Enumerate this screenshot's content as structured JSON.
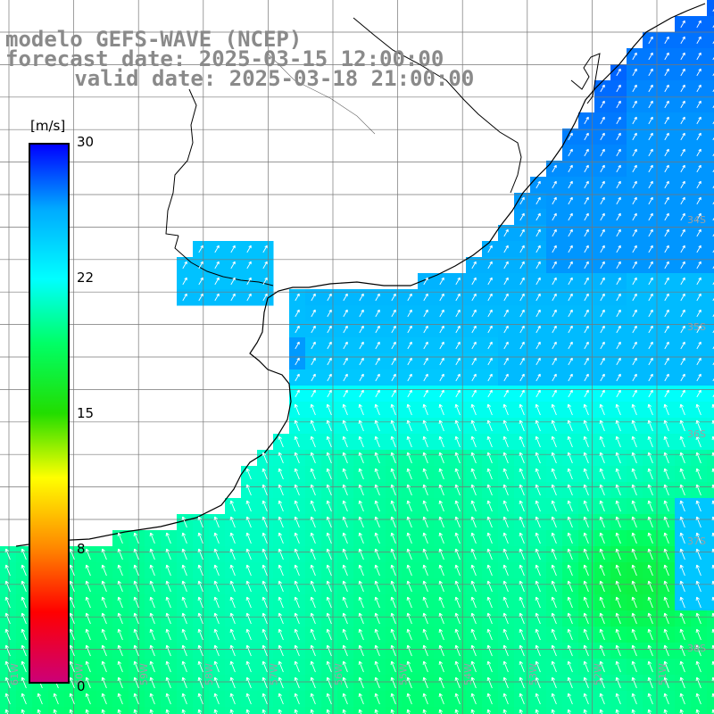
{
  "header": {
    "model_line": "modelo GEFS-WAVE (NCEP)",
    "forecast_line": "forecast date: 2025-03-15 12:00:00",
    "valid_line": "   valid date: 2025-03-18 21:00:00"
  },
  "colorbar": {
    "unit": "[m/s]",
    "ticks": {
      "t30": "30",
      "t22": "22",
      "t15": "15",
      "t8": "8",
      "t0": "0"
    },
    "stops": [
      "#0000ff",
      "#00aaff",
      "#00ffff",
      "#00ff66",
      "#22dd00",
      "#ffff00",
      "#ff8800",
      "#ff0000",
      "#cc0077"
    ]
  },
  "map": {
    "lon_labels": [
      "61W",
      "60W",
      "59W",
      "58W",
      "57W",
      "56W",
      "55W",
      "54W",
      "53W",
      "52W",
      "51W"
    ],
    "lat_labels": [
      "34S",
      "35S",
      "36S",
      "37S",
      "38S"
    ],
    "colors": {
      "land": "#ffffff",
      "grid": "#777777",
      "coast": "#000000",
      "arrow": "#ffffff"
    }
  }
}
